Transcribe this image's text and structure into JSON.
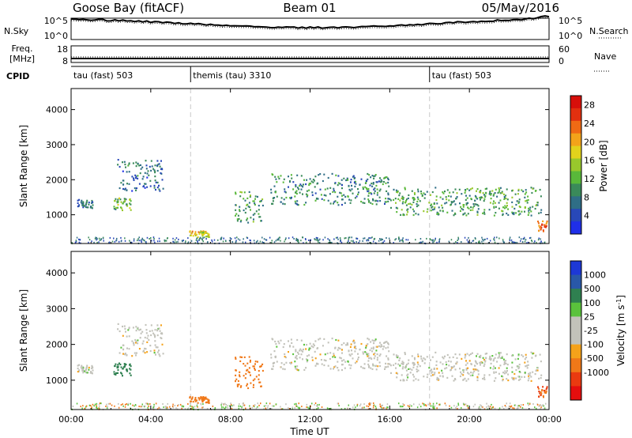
{
  "header": {
    "station": "Goose Bay (fitACF)",
    "beam": "Beam 01",
    "date": "05/May/2016"
  },
  "noise_panel": {
    "left_label": "N.Sky",
    "right_label": "N.Search",
    "left_ticks": [
      "10^5",
      "10^0"
    ],
    "right_ticks": [
      "10^5",
      "10^0"
    ]
  },
  "freq_panel": {
    "left_label_line1": "Freq.",
    "left_label_line2": "[MHz]",
    "right_label": "Nave",
    "left_ticks": [
      "18",
      "8"
    ],
    "right_ticks": [
      "60",
      "0"
    ]
  },
  "cpid_panel": {
    "label": "CPID",
    "segments": [
      {
        "label": "tau (fast) 503",
        "start_hour": 0
      },
      {
        "label": "themis (tau) 3310",
        "start_hour": 6
      },
      {
        "label": "tau (fast) 503",
        "start_hour": 18
      }
    ]
  },
  "axes": {
    "ylabel": "Slant Range [km]",
    "xlabel": "Time UT",
    "yticks": [
      "1000",
      "2000",
      "3000",
      "4000"
    ],
    "xticks": [
      "00:00",
      "04:00",
      "08:00",
      "12:00",
      "16:00",
      "20:00",
      "00:00"
    ]
  },
  "colorbars": {
    "power": {
      "label": "Power [dB]",
      "ticks": [
        "4",
        "8",
        "12",
        "16",
        "20",
        "24",
        "28"
      ],
      "colors": [
        "#1f2fe8",
        "#2848b8",
        "#2f6e86",
        "#3a8a5a",
        "#59b83a",
        "#98c82c",
        "#e2d21c",
        "#f3a31a",
        "#ef6a14",
        "#e2300f",
        "#d70f0a"
      ]
    },
    "velocity": {
      "label": "Velocity [m s-1]",
      "ticks": [
        "1000",
        "500",
        "100",
        "25",
        "-25",
        "-100",
        "-500",
        "-1000"
      ],
      "colors": [
        "#1d38d6",
        "#2958a8",
        "#2f8050",
        "#5ac23c",
        "#c2c2ba",
        "#c2c2ba",
        "#f5a21a",
        "#f07818",
        "#ea3a10",
        "#e50e0e"
      ]
    }
  },
  "chart_data": {
    "type": "heatmap",
    "x": {
      "unit": "hour UT",
      "range": [
        0,
        24
      ]
    },
    "y": {
      "unit": "km",
      "range": [
        180,
        4600
      ]
    },
    "panels": [
      {
        "name": "Power [dB]",
        "features": [
          {
            "t0": 0.3,
            "t1": 1.1,
            "r0": 1200,
            "r1": 1450,
            "v": 8
          },
          {
            "t0": 2.1,
            "t1": 3.0,
            "r0": 1150,
            "r1": 1500,
            "v": 14
          },
          {
            "t0": 2.3,
            "t1": 4.6,
            "r0": 1700,
            "r1": 2600,
            "v": 8
          },
          {
            "t0": 5.9,
            "t1": 6.9,
            "r0": 380,
            "r1": 560,
            "v": 20
          },
          {
            "t0": 8.2,
            "t1": 9.6,
            "r0": 800,
            "r1": 1700,
            "v": 12
          },
          {
            "t0": 10.0,
            "t1": 16.0,
            "r0": 1300,
            "r1": 2200,
            "v": 10
          },
          {
            "t0": 16.0,
            "t1": 23.6,
            "r0": 1000,
            "r1": 1800,
            "v": 12
          },
          {
            "t0": 23.4,
            "t1": 23.9,
            "r0": 550,
            "r1": 850,
            "v": 26
          }
        ]
      },
      {
        "name": "Velocity [m s-1]",
        "features": [
          {
            "t0": 0.3,
            "t1": 1.1,
            "r0": 1200,
            "r1": 1450,
            "v": 0
          },
          {
            "t0": 2.1,
            "t1": 3.0,
            "r0": 1150,
            "r1": 1500,
            "v": 150
          },
          {
            "t0": 2.3,
            "t1": 4.6,
            "r0": 1700,
            "r1": 2600,
            "v": 0
          },
          {
            "t0": 5.9,
            "t1": 6.9,
            "r0": 380,
            "r1": 560,
            "v": -200
          },
          {
            "t0": 8.2,
            "t1": 9.6,
            "r0": 800,
            "r1": 1700,
            "v": -300
          },
          {
            "t0": 10.0,
            "t1": 16.0,
            "r0": 1300,
            "r1": 2200,
            "v": 0
          },
          {
            "t0": 16.0,
            "t1": 23.6,
            "r0": 1000,
            "r1": 1800,
            "v": 0
          },
          {
            "t0": 23.4,
            "t1": 23.9,
            "r0": 550,
            "r1": 850,
            "v": -500
          }
        ]
      }
    ]
  }
}
